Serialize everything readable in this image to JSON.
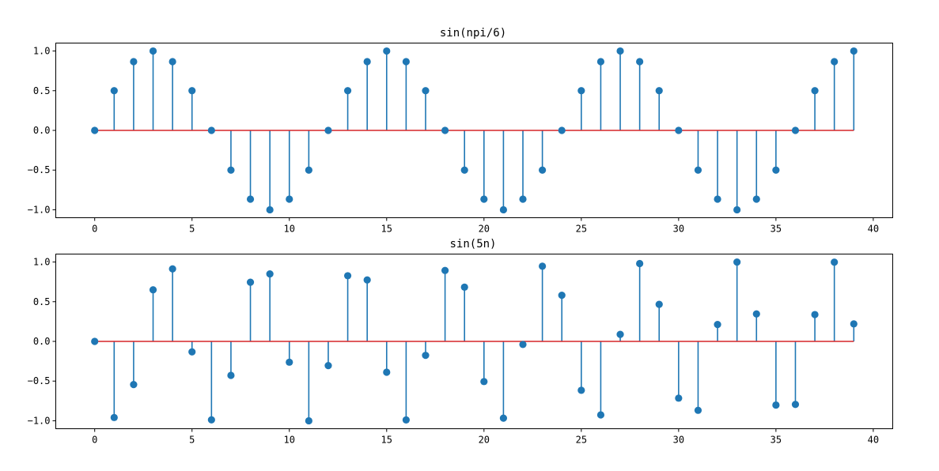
{
  "chart_data": [
    {
      "type": "stem",
      "title": "sin(npi/6)",
      "xlabel": "",
      "ylabel": "",
      "xlim": [
        -2,
        41
      ],
      "ylim": [
        -1.1,
        1.1
      ],
      "xticks": [
        0,
        5,
        10,
        15,
        20,
        25,
        30,
        35,
        40
      ],
      "xtick_labels": [
        "0",
        "5",
        "10",
        "15",
        "20",
        "25",
        "30",
        "35",
        "40"
      ],
      "yticks": [
        1.0,
        0.5,
        0.0,
        -0.5,
        -1.0
      ],
      "ytick_labels": [
        "1.0",
        "0.5",
        "0.0",
        "−0.5",
        "−1.0"
      ],
      "x": [
        0,
        1,
        2,
        3,
        4,
        5,
        6,
        7,
        8,
        9,
        10,
        11,
        12,
        13,
        14,
        15,
        16,
        17,
        18,
        19,
        20,
        21,
        22,
        23,
        24,
        25,
        26,
        27,
        28,
        29,
        30,
        31,
        32,
        33,
        34,
        35,
        36,
        37,
        38,
        39
      ],
      "values": [
        0.0,
        0.5,
        0.866,
        1.0,
        0.866,
        0.5,
        0.0,
        -0.5,
        -0.866,
        -1.0,
        -0.866,
        -0.5,
        0.0,
        0.5,
        0.866,
        1.0,
        0.866,
        0.5,
        0.0,
        -0.5,
        -0.866,
        -1.0,
        -0.866,
        -0.5,
        0.0,
        0.5,
        0.866,
        1.0,
        0.866,
        0.5,
        0.0,
        -0.5,
        -0.866,
        -1.0,
        -0.866,
        -0.5,
        0.0,
        0.5,
        0.866,
        1.0
      ],
      "stem_color": "#1f77b4",
      "marker_color": "#1f77b4",
      "baseline_color": "#d62728",
      "grid": false
    },
    {
      "type": "stem",
      "title": "sin(5n)",
      "xlabel": "",
      "ylabel": "",
      "xlim": [
        -2,
        41
      ],
      "ylim": [
        -1.1,
        1.1
      ],
      "xticks": [
        0,
        5,
        10,
        15,
        20,
        25,
        30,
        35,
        40
      ],
      "xtick_labels": [
        "0",
        "5",
        "10",
        "15",
        "20",
        "25",
        "30",
        "35",
        "40"
      ],
      "yticks": [
        1.0,
        0.5,
        0.0,
        -0.5,
        -1.0
      ],
      "ytick_labels": [
        "1.0",
        "0.5",
        "0.0",
        "−0.5",
        "−1.0"
      ],
      "x": [
        0,
        1,
        2,
        3,
        4,
        5,
        6,
        7,
        8,
        9,
        10,
        11,
        12,
        13,
        14,
        15,
        16,
        17,
        18,
        19,
        20,
        21,
        22,
        23,
        24,
        25,
        26,
        27,
        28,
        29,
        30,
        31,
        32,
        33,
        34,
        35,
        36,
        37,
        38,
        39
      ],
      "values": [
        0.0,
        -0.959,
        -0.544,
        0.65,
        0.913,
        -0.132,
        -0.988,
        -0.428,
        0.745,
        0.85,
        -0.262,
        -1.0,
        -0.305,
        0.827,
        0.774,
        -0.388,
        -0.989,
        -0.176,
        0.894,
        0.683,
        -0.506,
        -0.967,
        -0.039,
        0.947,
        0.581,
        -0.616,
        -0.926,
        0.088,
        0.981,
        0.467,
        -0.715,
        -0.868,
        0.213,
        0.999,
        0.346,
        -0.802,
        -0.794,
        0.338,
        0.998,
        0.22
      ],
      "stem_color": "#1f77b4",
      "marker_color": "#1f77b4",
      "baseline_color": "#d62728",
      "grid": false
    }
  ]
}
